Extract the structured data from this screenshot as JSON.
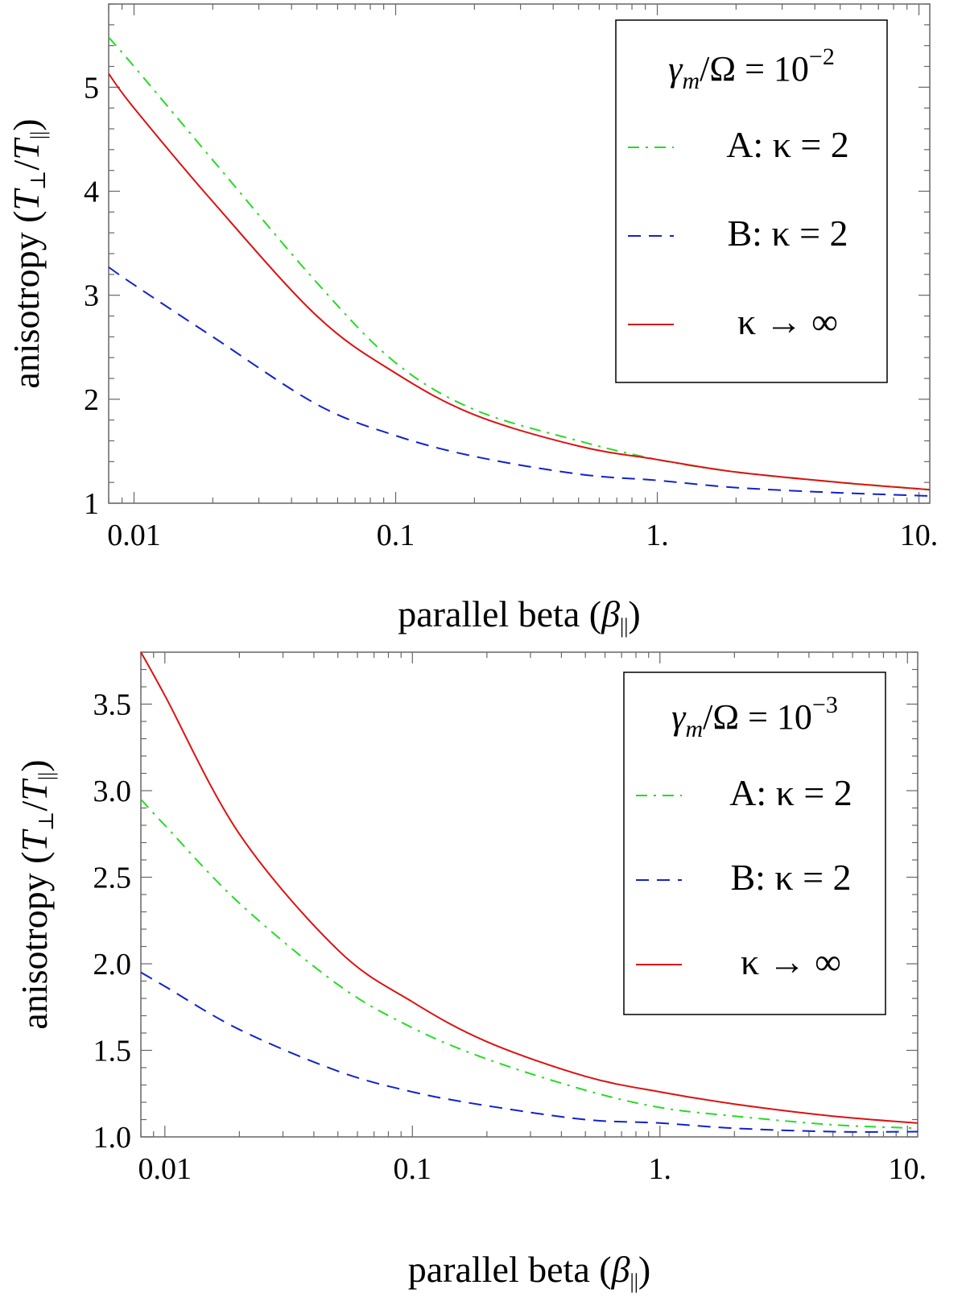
{
  "chart_data": [
    {
      "type": "line",
      "panel": "top",
      "xscale": "log",
      "xlim": [
        0.008,
        11
      ],
      "ylim": [
        1,
        5.8
      ],
      "xticks": [
        {
          "value": 0.01,
          "label": "0.01"
        },
        {
          "value": 0.1,
          "label": "0.1"
        },
        {
          "value": 1,
          "label": "1."
        },
        {
          "value": 10,
          "label": "10."
        }
      ],
      "yticks": [
        {
          "value": 1,
          "label": "1"
        },
        {
          "value": 2,
          "label": "2"
        },
        {
          "value": 3,
          "label": "3"
        },
        {
          "value": 4,
          "label": "4"
        },
        {
          "value": 5,
          "label": "5"
        }
      ],
      "xlabel": {
        "text": "parallel beta (",
        "symbol": "β",
        "sub": "||",
        "close": ")"
      },
      "ylabel": {
        "text": "anisotropy (",
        "num": "T",
        "num_sub": "⊥",
        "slash": "/",
        "den": "T",
        "den_sub": "||",
        "close": ")"
      },
      "legend_title": {
        "sym": "γ",
        "sub": "m",
        "rest": "/Ω = 10",
        "exp": "−2"
      },
      "legend_position": "top-right",
      "series": [
        {
          "name": "A: κ = 2",
          "color": "#22dd22",
          "dash": "dot-dash",
          "x": [
            0.008,
            0.01,
            0.02,
            0.05,
            0.1,
            0.2,
            0.5,
            1,
            2,
            5,
            11
          ],
          "y": [
            5.48,
            5.2,
            4.3,
            3.12,
            2.35,
            1.9,
            1.6,
            1.42,
            1.3,
            1.2,
            1.13
          ]
        },
        {
          "name": "B: κ = 2",
          "color": "#1122cc",
          "dash": "dashed",
          "x": [
            0.008,
            0.01,
            0.02,
            0.05,
            0.1,
            0.2,
            0.5,
            1,
            2,
            5,
            11
          ],
          "y": [
            3.27,
            3.1,
            2.6,
            1.95,
            1.65,
            1.45,
            1.28,
            1.22,
            1.15,
            1.1,
            1.07
          ]
        },
        {
          "name": "κ → ∞",
          "color": "#dd1111",
          "dash": "solid",
          "x": [
            0.008,
            0.01,
            0.02,
            0.05,
            0.1,
            0.2,
            0.5,
            1,
            2,
            5,
            11
          ],
          "y": [
            5.13,
            4.8,
            3.9,
            2.8,
            2.25,
            1.85,
            1.55,
            1.42,
            1.3,
            1.2,
            1.13
          ]
        }
      ]
    },
    {
      "type": "line",
      "panel": "bottom",
      "xscale": "log",
      "xlim": [
        0.008,
        11
      ],
      "ylim": [
        1,
        3.8
      ],
      "xticks": [
        {
          "value": 0.01,
          "label": "0.01"
        },
        {
          "value": 0.1,
          "label": "0.1"
        },
        {
          "value": 1,
          "label": "1."
        },
        {
          "value": 10,
          "label": "10."
        }
      ],
      "yticks": [
        {
          "value": 1.0,
          "label": "1.0"
        },
        {
          "value": 1.5,
          "label": "1.5"
        },
        {
          "value": 2.0,
          "label": "2.0"
        },
        {
          "value": 2.5,
          "label": "2.5"
        },
        {
          "value": 3.0,
          "label": "3.0"
        },
        {
          "value": 3.5,
          "label": "3.5"
        }
      ],
      "xlabel": {
        "text": "parallel beta (",
        "symbol": "β",
        "sub": "||",
        "close": ")"
      },
      "ylabel": {
        "text": "anisotropy (",
        "num": "T",
        "num_sub": "⊥",
        "slash": "/",
        "den": "T",
        "den_sub": "||",
        "close": ")"
      },
      "legend_title": {
        "sym": "γ",
        "sub": "m",
        "rest": "/Ω = 10",
        "exp": "−3"
      },
      "legend_position": "top-right",
      "series": [
        {
          "name": "A: κ = 2",
          "color": "#22dd22",
          "dash": "dot-dash",
          "x": [
            0.008,
            0.01,
            0.02,
            0.05,
            0.1,
            0.2,
            0.5,
            1,
            2,
            5,
            11
          ],
          "y": [
            2.95,
            2.8,
            2.35,
            1.88,
            1.63,
            1.45,
            1.27,
            1.17,
            1.12,
            1.07,
            1.05
          ]
        },
        {
          "name": "B: κ = 2",
          "color": "#1122cc",
          "dash": "dashed",
          "x": [
            0.008,
            0.01,
            0.02,
            0.05,
            0.1,
            0.2,
            0.5,
            1,
            2,
            5,
            11
          ],
          "y": [
            1.95,
            1.87,
            1.62,
            1.38,
            1.26,
            1.18,
            1.1,
            1.08,
            1.05,
            1.03,
            1.03
          ]
        },
        {
          "name": "κ → ∞",
          "color": "#dd1111",
          "dash": "solid",
          "x": [
            0.008,
            0.01,
            0.02,
            0.05,
            0.1,
            0.2,
            0.5,
            1,
            2,
            5,
            11
          ],
          "y": [
            3.8,
            3.55,
            2.75,
            2.08,
            1.78,
            1.55,
            1.35,
            1.26,
            1.19,
            1.12,
            1.08
          ]
        }
      ]
    }
  ]
}
